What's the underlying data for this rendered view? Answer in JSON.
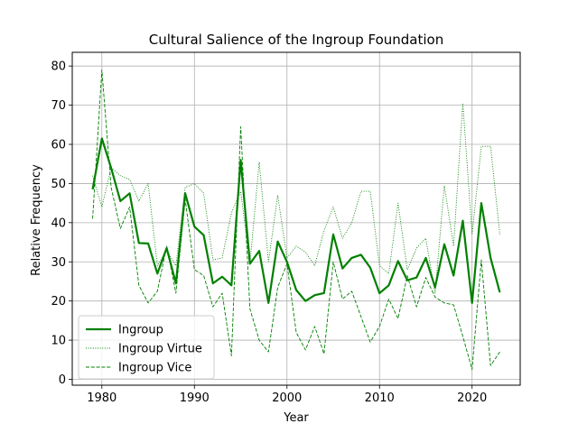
{
  "chart_data": {
    "type": "line",
    "title": "Cultural Salience of the Ingroup Foundation",
    "xlabel": "Year",
    "ylabel": "Relative Frequency",
    "xlim": [
      1976.8,
      2025.2
    ],
    "ylim": [
      -1.5,
      83.5
    ],
    "xticks": [
      1980,
      1990,
      2000,
      2010,
      2020
    ],
    "yticks": [
      0,
      10,
      20,
      30,
      40,
      50,
      60,
      70,
      80
    ],
    "grid": true,
    "legend_position": "lower-left",
    "x": [
      1979,
      1980,
      1981,
      1982,
      1983,
      1984,
      1985,
      1986,
      1987,
      1988,
      1989,
      1990,
      1991,
      1992,
      1993,
      1994,
      1995,
      1996,
      1997,
      1998,
      1999,
      2000,
      2001,
      2002,
      2003,
      2004,
      2005,
      2006,
      2007,
      2008,
      2009,
      2010,
      2011,
      2012,
      2013,
      2014,
      2015,
      2016,
      2017,
      2018,
      2019,
      2020,
      2021,
      2022,
      2023
    ],
    "series": [
      {
        "name": "Ingroup",
        "color": "#008000",
        "style": "solid",
        "values": [
          48.5,
          61.5,
          54,
          45.5,
          47.5,
          34.8,
          34.7,
          27,
          33.5,
          24.5,
          47.5,
          39,
          36.8,
          24.5,
          26.2,
          24,
          56,
          29.5,
          32.8,
          19.5,
          35.2,
          30,
          22.8,
          20,
          21.5,
          22,
          37,
          28.3,
          31,
          31.8,
          28.5,
          22,
          24,
          30.2,
          25.3,
          26,
          31,
          23.5,
          34.5,
          26.5,
          40.5,
          19.5,
          45,
          31,
          22.2
        ]
      },
      {
        "name": "Ingroup Virtue",
        "color": "#008000",
        "style": "dotted",
        "values": [
          52,
          44,
          54,
          52,
          51,
          45.5,
          50,
          29,
          33,
          29,
          49,
          50,
          47.5,
          30.5,
          31,
          42.5,
          48,
          29.5,
          55.5,
          30,
          47,
          31,
          34,
          32.5,
          29,
          38,
          44,
          36,
          40,
          48,
          48,
          29,
          27,
          45,
          28,
          33.5,
          36,
          22,
          49.5,
          34,
          70.5,
          37,
          59.5,
          59.5,
          37
        ]
      },
      {
        "name": "Ingroup Vice",
        "color": "#008000",
        "style": "dashed",
        "values": [
          41,
          79,
          49,
          38.5,
          44,
          24,
          19.5,
          22.5,
          34,
          22,
          46,
          28,
          26.5,
          18.5,
          22,
          6,
          64.5,
          18,
          10,
          7,
          23.5,
          29.5,
          12,
          7.5,
          13.5,
          6.5,
          30,
          20.5,
          22.5,
          16,
          9.5,
          13.5,
          20.5,
          15.5,
          26.5,
          18.5,
          26,
          21,
          19.5,
          19,
          11,
          2.5,
          30.5,
          3.5,
          7
        ]
      }
    ]
  }
}
